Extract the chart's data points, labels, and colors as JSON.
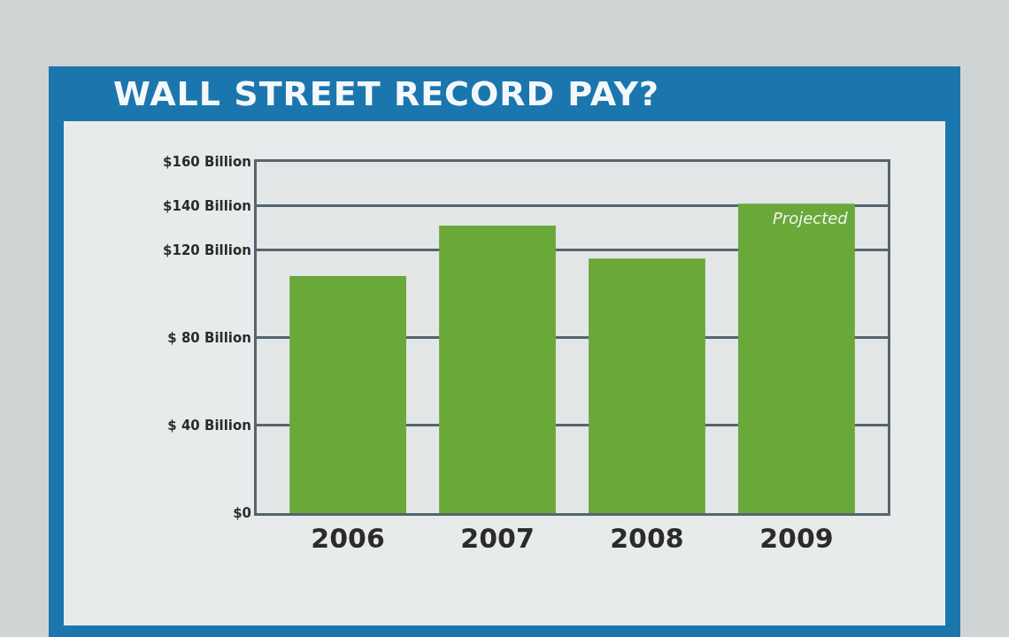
{
  "chart_data": {
    "type": "bar",
    "title": "WALL STREET RECORD PAY?",
    "categories": [
      "2006",
      "2007",
      "2008",
      "2009"
    ],
    "values": [
      108,
      131,
      116,
      141
    ],
    "color": "#6aa83a",
    "ylim": [
      0,
      160
    ],
    "yticks": [
      {
        "value": 0,
        "label": "$0"
      },
      {
        "value": 40,
        "label": "$ 40 Billion"
      },
      {
        "value": 80,
        "label": "$ 80 Billion"
      },
      {
        "value": 120,
        "label": "$120 Billion"
      },
      {
        "value": 140,
        "label": "$140 Billion"
      },
      {
        "value": 160,
        "label": "$160 Billion"
      }
    ],
    "grid": "y",
    "annotations": [
      {
        "text": "Projected",
        "x": "2009",
        "y": 141
      }
    ]
  }
}
